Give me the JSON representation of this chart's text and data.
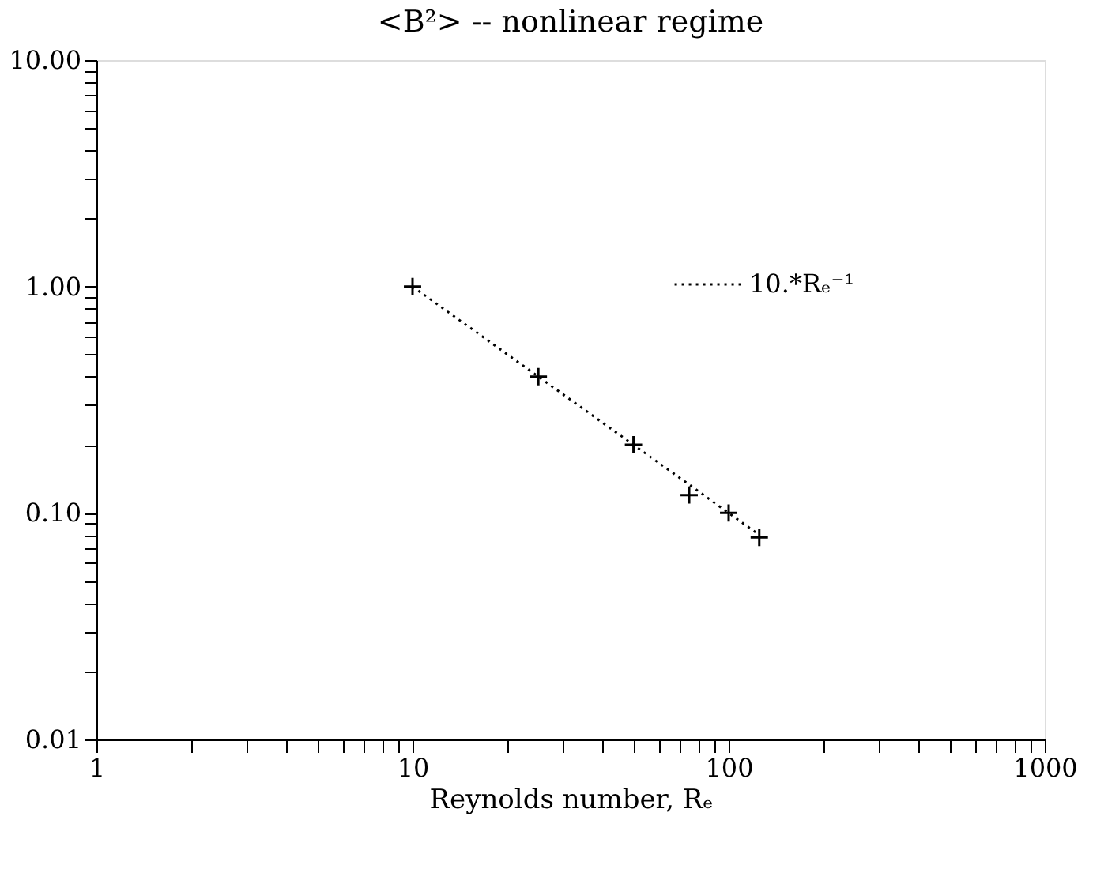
{
  "chart_data": {
    "type": "scatter",
    "title": "<B²> -- nonlinear regime",
    "xlabel": "Reynolds number, Rₑ",
    "log": "xy",
    "grid": false,
    "legend": "top right",
    "xlim": [
      1,
      1000
    ],
    "ylim": [
      0.01,
      10
    ],
    "xticks": [
      1,
      {
        "value": 2,
        "label": null
      },
      {
        "value": 3,
        "label": null
      },
      {
        "value": 4,
        "label": null
      },
      {
        "value": 5,
        "label": null
      },
      {
        "value": 6,
        "label": null
      },
      {
        "value": 7,
        "label": null
      },
      {
        "value": 8,
        "label": null
      },
      {
        "value": 9,
        "label": null
      },
      10,
      {
        "value": 20,
        "label": null
      },
      {
        "value": 30,
        "label": null
      },
      {
        "value": 40,
        "label": null
      },
      {
        "value": 50,
        "label": null
      },
      {
        "value": 60,
        "label": null
      },
      {
        "value": 70,
        "label": null
      },
      {
        "value": 80,
        "label": null
      },
      {
        "value": 90,
        "label": null
      },
      100,
      {
        "value": 200,
        "label": null
      },
      {
        "value": 300,
        "label": null
      },
      {
        "value": 400,
        "label": null
      },
      {
        "value": 500,
        "label": null
      },
      {
        "value": 600,
        "label": null
      },
      {
        "value": 700,
        "label": null
      },
      {
        "value": 800,
        "label": null
      },
      {
        "value": 900,
        "label": null
      },
      1000
    ],
    "yticks": [
      {
        "value": 0.01,
        "label": "0.01"
      },
      {
        "value": 0.02,
        "label": null
      },
      {
        "value": 0.03,
        "label": null
      },
      {
        "value": 0.04,
        "label": null
      },
      {
        "value": 0.05,
        "label": null
      },
      {
        "value": 0.06,
        "label": null
      },
      {
        "value": 0.07,
        "label": null
      },
      {
        "value": 0.08,
        "label": null
      },
      {
        "value": 0.09,
        "label": null
      },
      {
        "value": 0.1,
        "label": "0.10"
      },
      {
        "value": 0.2,
        "label": null
      },
      {
        "value": 0.3,
        "label": null
      },
      {
        "value": 0.4,
        "label": null
      },
      {
        "value": 0.5,
        "label": null
      },
      {
        "value": 0.6,
        "label": null
      },
      {
        "value": 0.7,
        "label": null
      },
      {
        "value": 0.8,
        "label": null
      },
      {
        "value": 0.9,
        "label": null
      },
      {
        "value": 1,
        "label": "1.00"
      },
      {
        "value": 2,
        "label": null
      },
      {
        "value": 3,
        "label": null
      },
      {
        "value": 4,
        "label": null
      },
      {
        "value": 5,
        "label": null
      },
      {
        "value": 6,
        "label": null
      },
      {
        "value": 7,
        "label": null
      },
      {
        "value": 8,
        "label": null
      },
      {
        "value": 9,
        "label": null
      },
      {
        "value": 10,
        "label": "10.00"
      }
    ],
    "series": [
      {
        "marker": "cross",
        "color": "#000000",
        "x": [
          10,
          25,
          50,
          75,
          100,
          125
        ],
        "values": [
          1.0,
          0.4,
          0.2,
          0.12,
          0.1,
          0.078
        ]
      },
      {
        "type": "line",
        "line_style": "dotted",
        "name": "10.*Rₑ⁻¹",
        "color": "#000000",
        "x": [
          10,
          125
        ],
        "values": [
          1.0,
          0.08
        ]
      }
    ]
  }
}
